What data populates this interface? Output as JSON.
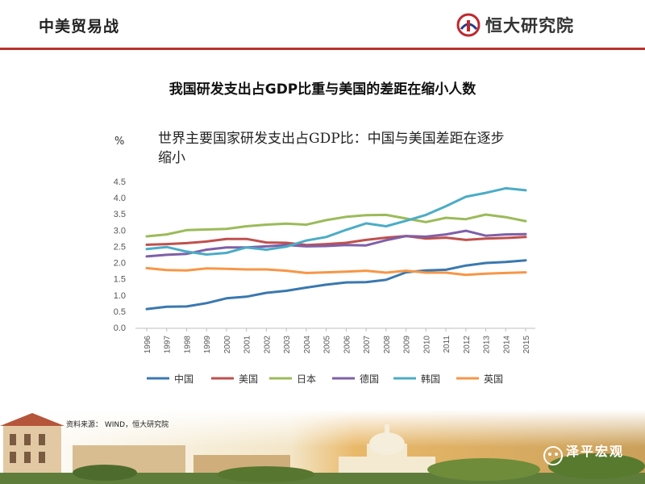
{
  "header": {
    "title": "中美贸易战",
    "logo_text": "恒大研究院"
  },
  "headline": "我国研发支出占GDP比重与美国的差距在缩小人数",
  "source": "资料来源： WIND，恒大研究院",
  "watermark": "泽平宏观",
  "chart_data": {
    "type": "line",
    "title": "世界主要国家研发支出占GDP比：中国与美国差距在逐步缩小",
    "ylabel": "%",
    "ylim": [
      0,
      4.5
    ],
    "yticks": [
      "0.0",
      "0.5",
      "1.0",
      "1.5",
      "2.0",
      "2.5",
      "3.0",
      "3.5",
      "4.0",
      "4.5"
    ],
    "categories": [
      "1996",
      "1997",
      "1998",
      "1999",
      "2000",
      "2001",
      "2002",
      "2003",
      "2004",
      "2005",
      "2006",
      "2007",
      "2008",
      "2009",
      "2010",
      "2011",
      "2012",
      "2013",
      "2014",
      "2015"
    ],
    "legend_position": "bottom",
    "grid": false,
    "series": [
      {
        "name": "中国",
        "color": "#3a78b0",
        "values": [
          0.57,
          0.64,
          0.65,
          0.75,
          0.9,
          0.95,
          1.07,
          1.13,
          1.23,
          1.32,
          1.39,
          1.4,
          1.47,
          1.7,
          1.76,
          1.78,
          1.91,
          1.99,
          2.02,
          2.07
        ]
      },
      {
        "name": "美国",
        "color": "#c0504d",
        "values": [
          2.55,
          2.57,
          2.6,
          2.65,
          2.73,
          2.73,
          2.62,
          2.61,
          2.54,
          2.57,
          2.61,
          2.7,
          2.77,
          2.82,
          2.74,
          2.77,
          2.7,
          2.74,
          2.76,
          2.79
        ]
      },
      {
        "name": "日本",
        "color": "#9bbb59",
        "values": [
          2.81,
          2.87,
          3.0,
          3.02,
          3.04,
          3.12,
          3.17,
          3.2,
          3.17,
          3.31,
          3.41,
          3.46,
          3.47,
          3.36,
          3.25,
          3.38,
          3.34,
          3.48,
          3.4,
          3.28
        ]
      },
      {
        "name": "德国",
        "color": "#7f5fa8",
        "values": [
          2.19,
          2.24,
          2.27,
          2.4,
          2.47,
          2.47,
          2.5,
          2.54,
          2.5,
          2.51,
          2.54,
          2.53,
          2.69,
          2.82,
          2.8,
          2.87,
          2.98,
          2.83,
          2.87,
          2.88
        ]
      },
      {
        "name": "韩国",
        "color": "#4bacc6",
        "values": [
          2.42,
          2.48,
          2.34,
          2.25,
          2.3,
          2.47,
          2.4,
          2.49,
          2.68,
          2.79,
          3.01,
          3.21,
          3.12,
          3.29,
          3.47,
          3.74,
          4.03,
          4.15,
          4.29,
          4.23
        ]
      },
      {
        "name": "英国",
        "color": "#f79646",
        "values": [
          1.83,
          1.77,
          1.76,
          1.82,
          1.81,
          1.79,
          1.79,
          1.75,
          1.68,
          1.7,
          1.72,
          1.75,
          1.69,
          1.75,
          1.69,
          1.69,
          1.62,
          1.66,
          1.68,
          1.7
        ]
      }
    ]
  }
}
